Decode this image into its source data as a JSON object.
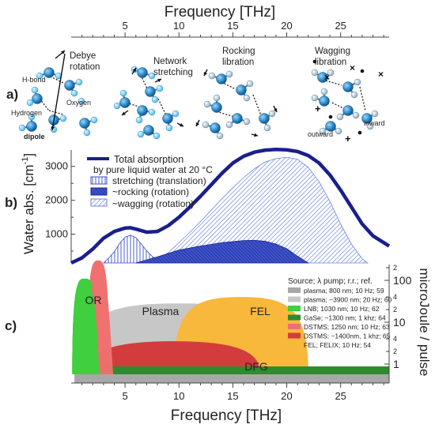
{
  "top_axis": {
    "title": "Frequency [THz]",
    "ticks": [
      5,
      10,
      15,
      20,
      25
    ],
    "range": [
      0,
      29.5
    ]
  },
  "panel_a": {
    "label": "a)",
    "modes": [
      {
        "title_lines": [
          "Debye",
          "rotation"
        ],
        "atom_labels": [
          "H-bond",
          "Oxygen",
          "Hydrogen",
          "dipole"
        ]
      },
      {
        "title_lines": [
          "Network",
          "stretching"
        ],
        "atom_labels": []
      },
      {
        "title_lines": [
          "Rocking",
          "libration"
        ],
        "atom_labels": []
      },
      {
        "title_lines": [
          "Wagging",
          "libration"
        ],
        "atom_labels": [
          "outward",
          "inward"
        ]
      }
    ]
  },
  "panel_b": {
    "label": "b)",
    "ylabel": "Water abs. [cm",
    "ylabel_sup": "-1",
    "ylabel_end": "]",
    "yticks": [
      1000,
      2000,
      3000
    ],
    "legend": {
      "total": "Total absorption",
      "subtitle": "by pure liquid water at 20 °C",
      "stretching": "stretching (translation)",
      "rocking": "~rocking (rotation)",
      "wagging": "~wagging (rotation)"
    },
    "colors": {
      "total": "#1a1f8c",
      "stretch": "#3a4fc4",
      "rock": "#2233aa",
      "wag": "#6b86e0"
    }
  },
  "chart_data": [
    {
      "type": "line",
      "panel": "b",
      "ylabel": "Water abs. [cm-1]",
      "xlabel": "Frequency [THz]",
      "xlim": [
        0,
        29.5
      ],
      "ylim": [
        150,
        3600
      ],
      "series": [
        {
          "name": "Total absorption",
          "kind": "line",
          "x": [
            0,
            1,
            2,
            3,
            4,
            5,
            5.5,
            6,
            7,
            8,
            9,
            10,
            11,
            12,
            13,
            14,
            15,
            16,
            17,
            18,
            19,
            20,
            21,
            22,
            23,
            24,
            25,
            26,
            27,
            28,
            29.5
          ],
          "y": [
            150,
            300,
            560,
            880,
            1080,
            1180,
            1190,
            1150,
            1060,
            1080,
            1250,
            1500,
            1800,
            2120,
            2460,
            2800,
            3100,
            3300,
            3420,
            3480,
            3500,
            3490,
            3440,
            3320,
            3100,
            2750,
            2300,
            1800,
            1300,
            950,
            650
          ]
        },
        {
          "name": "stretching (translation)",
          "kind": "area",
          "x": [
            3,
            3.5,
            4,
            4.5,
            5,
            5.5,
            6,
            6.5,
            7,
            7.5,
            8,
            9
          ],
          "y": [
            0,
            150,
            330,
            580,
            760,
            820,
            750,
            560,
            360,
            200,
            100,
            0
          ]
        },
        {
          "name": "~rocking (rotation)",
          "kind": "area",
          "x": [
            6,
            8,
            10,
            12,
            14,
            16,
            17,
            18,
            19,
            20,
            21,
            22
          ],
          "y": [
            0,
            180,
            380,
            500,
            600,
            660,
            670,
            640,
            560,
            420,
            200,
            0
          ]
        },
        {
          "name": "~wagging (rotation)",
          "kind": "area",
          "x": [
            7,
            8,
            9,
            10,
            11,
            12,
            13,
            14,
            15,
            16,
            17,
            18,
            19,
            20,
            21,
            22,
            23,
            24,
            25,
            26,
            27,
            27.5
          ],
          "y": [
            0,
            80,
            300,
            600,
            900,
            1220,
            1560,
            1900,
            2220,
            2520,
            2780,
            2980,
            3080,
            3120,
            3060,
            2820,
            2400,
            1820,
            1150,
            560,
            120,
            0
          ]
        }
      ]
    },
    {
      "type": "area",
      "panel": "c",
      "xlabel": "Frequency [THz]",
      "ylabel": "microJoule / pulse",
      "y_scale": "log",
      "ylim": [
        0.5,
        200
      ],
      "ytick_labels": [
        "1",
        "10",
        "100"
      ],
      "ytick_values": [
        1,
        10,
        100
      ],
      "minor_tick_labels": [
        "2",
        "4",
        "2",
        "4",
        "2"
      ],
      "minor_tick_values": [
        2,
        4,
        20,
        40,
        200
      ],
      "series": [
        {
          "name": "plasma; 800 nm; 10 Hz; 59",
          "color": "#a8a8a8",
          "x": [
            0.3,
            29.5
          ],
          "peak": 0.7
        },
        {
          "name": "plasma; ~3900 nm; 20 Hz; 60",
          "color": "#c7c7c7",
          "x": [
            0.5,
            19.5
          ],
          "peak": 28
        },
        {
          "name": "LNB; 1030 nm; 10 Hz; 62",
          "color": "#3fcf3f",
          "x": [
            0.1,
            2.5
          ],
          "peak": 110
        },
        {
          "name": "GaSe; ~1300 nm; 1 khz; 64",
          "color": "#2e8b2e",
          "x": [
            10.5,
            29.5
          ],
          "peak": 1.1
        },
        {
          "name": "DSTMS; 1250 nm; 10 Hz; 63",
          "color": "#f07070",
          "x": [
            1.5,
            3.5
          ],
          "peak": 300
        },
        {
          "name": "DSTMS; ~1400nm, 1 khz; 65",
          "color": "#d33c3c",
          "x": [
            1.5,
            17.5
          ],
          "peak": 3.5
        },
        {
          "name": "FEL; FELIX; 10 Hz; 54",
          "color": "#f7b83c",
          "x": [
            9.5,
            22
          ],
          "peak": 40
        }
      ],
      "region_labels": [
        "OR",
        "Plasma",
        "FEL",
        "DFG"
      ]
    }
  ],
  "panel_c": {
    "label": "c)",
    "ylabel": "microJoule / pulse",
    "legend_title": "Source; λ pump; r.r.; ref."
  },
  "bottom_axis": {
    "title": "Frequency [THz]",
    "ticks": [
      5,
      10,
      15,
      20,
      25
    ]
  }
}
